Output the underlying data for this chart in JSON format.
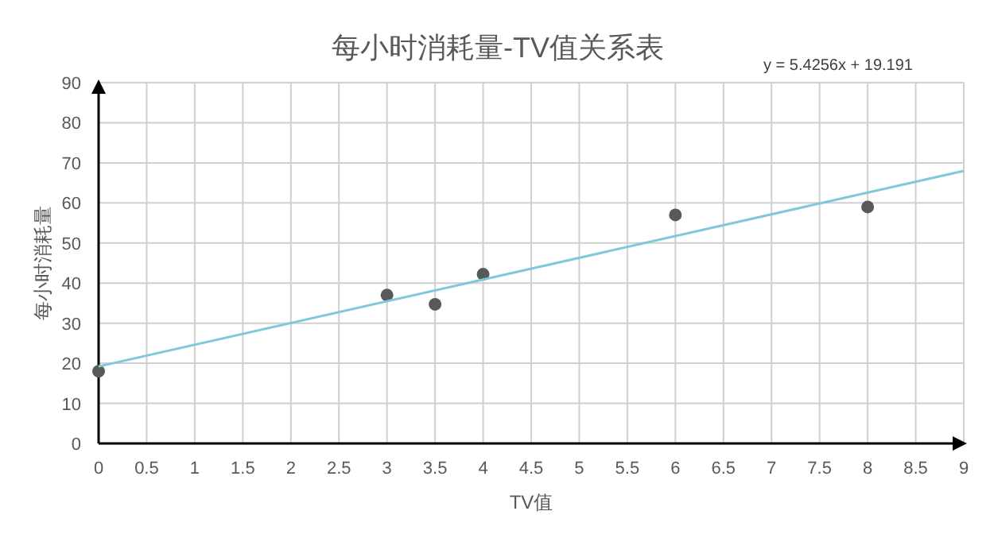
{
  "chart_data": {
    "type": "scatter",
    "title": "每小时消耗量-TV值关系表",
    "xlabel": "TV值",
    "ylabel": "每小时消耗量",
    "annotations": [
      "y = 5.4256x + 19.191"
    ],
    "series": [
      {
        "color": "#595959",
        "marker": "circle",
        "x": [
          0,
          3,
          3.5,
          4,
          6,
          8
        ],
        "values": [
          18,
          37,
          34.7,
          42.2,
          57,
          59
        ]
      },
      {
        "type": "line",
        "color": "#7ec8d9",
        "marker": "none",
        "line_style": "solid",
        "x": [
          0,
          9
        ],
        "values": [
          19.2,
          68.0
        ]
      }
    ],
    "xlim": [
      0,
      9
    ],
    "ylim": [
      0,
      90
    ],
    "xticks": [
      0,
      0.5,
      1,
      1.5,
      2,
      2.5,
      3,
      3.5,
      4,
      4.5,
      5,
      5.5,
      6,
      6.5,
      7,
      7.5,
      8,
      8.5,
      9
    ],
    "yticks": [
      0,
      10,
      20,
      30,
      40,
      50,
      60,
      70,
      80,
      90
    ],
    "grid": true
  }
}
